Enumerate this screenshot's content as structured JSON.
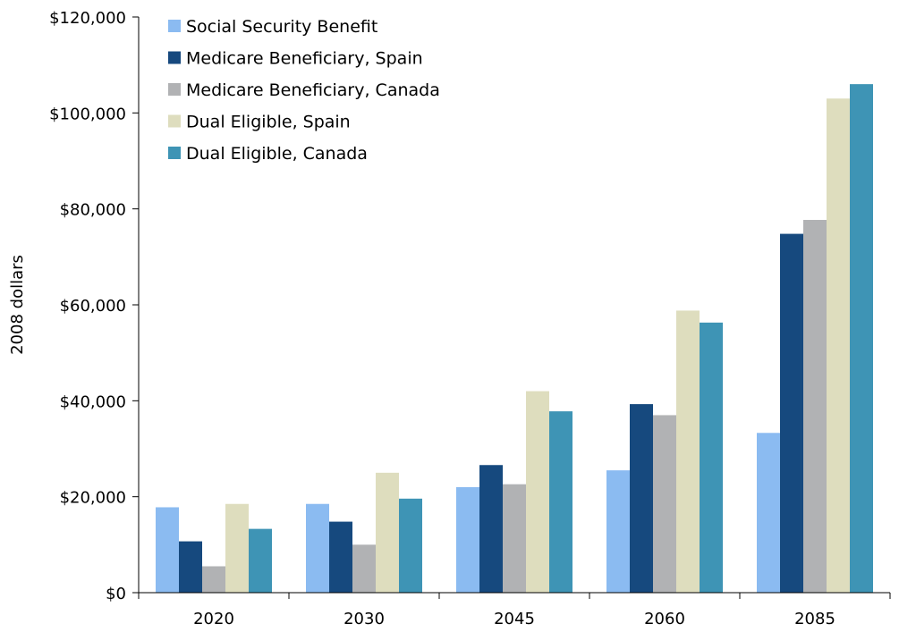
{
  "chart_data": {
    "type": "bar",
    "title": "",
    "xlabel": "",
    "ylabel": "2008 dollars",
    "categories": [
      "2020",
      "2030",
      "2045",
      "2060",
      "2085"
    ],
    "ylim": [
      0,
      120000
    ],
    "yticks": [
      0,
      20000,
      40000,
      60000,
      80000,
      100000,
      120000
    ],
    "ytick_labels": [
      "$0",
      "$20,000",
      "$40,000",
      "$60,000",
      "$80,000",
      "$100,000",
      "$120,000"
    ],
    "grid": false,
    "legend_position": "top-left",
    "series": [
      {
        "name": "Social Security Benefit",
        "color": "#8BBBF1",
        "values": [
          17800,
          18500,
          22000,
          25500,
          33300
        ]
      },
      {
        "name": "Medicare Beneficiary, Spain",
        "color": "#16497E",
        "values": [
          10700,
          14800,
          26600,
          39300,
          74800
        ]
      },
      {
        "name": "Medicare Beneficiary, Canada",
        "color": "#B1B2B4",
        "values": [
          5500,
          10000,
          22600,
          37000,
          77700
        ]
      },
      {
        "name": "Dual Eligible, Spain",
        "color": "#DEDDBE",
        "values": [
          18500,
          25000,
          42000,
          58800,
          103000
        ]
      },
      {
        "name": "Dual Eligible, Canada",
        "color": "#3E94B5",
        "values": [
          13300,
          19600,
          37800,
          56300,
          106000
        ]
      }
    ]
  }
}
